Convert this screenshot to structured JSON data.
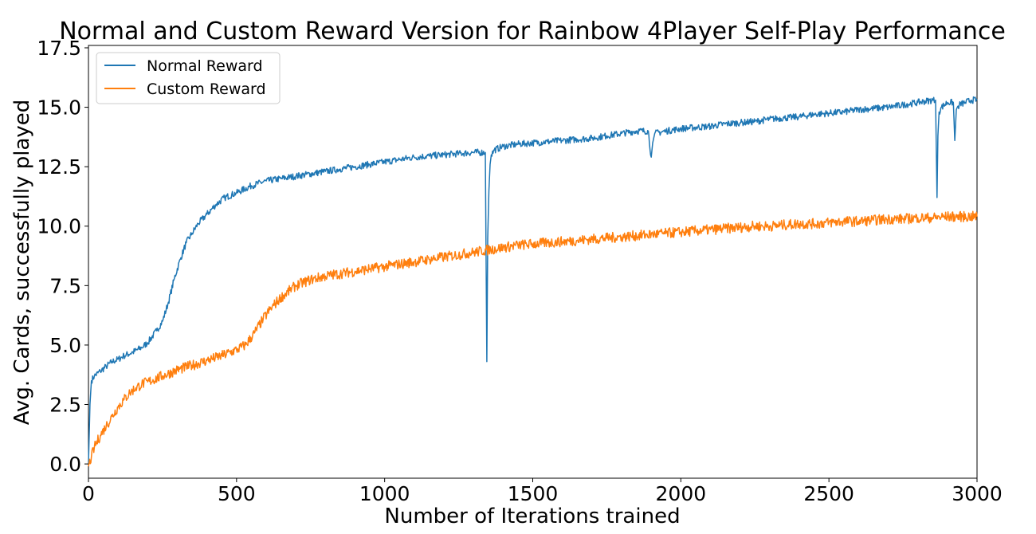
{
  "chart_data": {
    "type": "line",
    "title": "Normal and Custom Reward Version for Rainbow 4Player Self-Play Performance",
    "xlabel": "Number of Iterations trained",
    "ylabel": "Avg. Cards, successfully played",
    "xlim": [
      0,
      3000
    ],
    "ylim": [
      -0.6,
      17.6
    ],
    "xticks": [
      0,
      500,
      1000,
      1500,
      2000,
      2500,
      3000
    ],
    "yticks": [
      0.0,
      2.5,
      5.0,
      7.5,
      10.0,
      12.5,
      15.0,
      17.5
    ],
    "ytick_labels": [
      "0.0",
      "2.5",
      "5.0",
      "7.5",
      "10.0",
      "12.5",
      "15.0",
      "17.5"
    ],
    "xtick_labels": [
      "0",
      "500",
      "1000",
      "1500",
      "2000",
      "2500",
      "3000"
    ],
    "grid": false,
    "legend_position": "top-left",
    "series": [
      {
        "name": "Normal Reward",
        "color": "#1f77b4",
        "x": [
          0,
          5,
          10,
          20,
          40,
          60,
          80,
          100,
          120,
          150,
          180,
          200,
          230,
          250,
          270,
          290,
          310,
          330,
          350,
          370,
          400,
          430,
          460,
          500,
          550,
          600,
          650,
          700,
          750,
          800,
          850,
          900,
          950,
          1000,
          1050,
          1100,
          1150,
          1200,
          1250,
          1300,
          1340,
          1345,
          1348,
          1352,
          1356,
          1360,
          1370,
          1400,
          1450,
          1500,
          1550,
          1600,
          1650,
          1700,
          1750,
          1800,
          1850,
          1890,
          1900,
          1905,
          1912,
          1950,
          2000,
          2050,
          2100,
          2150,
          2200,
          2250,
          2300,
          2350,
          2400,
          2450,
          2500,
          2550,
          2600,
          2650,
          2700,
          2750,
          2800,
          2850,
          2860,
          2865,
          2868,
          2872,
          2880,
          2900,
          2920,
          2925,
          2930,
          2940,
          2960,
          2980,
          3000
        ],
        "y": [
          0.0,
          2.5,
          3.5,
          3.7,
          3.9,
          4.1,
          4.3,
          4.4,
          4.55,
          4.7,
          4.9,
          5.1,
          5.6,
          6.0,
          6.8,
          7.8,
          8.6,
          9.3,
          9.7,
          10.1,
          10.5,
          10.9,
          11.2,
          11.4,
          11.7,
          11.9,
          12.0,
          12.1,
          12.2,
          12.3,
          12.4,
          12.5,
          12.6,
          12.7,
          12.8,
          12.9,
          12.95,
          13.0,
          13.05,
          13.1,
          13.1,
          4.3,
          9.5,
          11.5,
          12.6,
          13.0,
          13.2,
          13.35,
          13.45,
          13.5,
          13.55,
          13.6,
          13.65,
          13.7,
          13.8,
          13.9,
          14.0,
          14.0,
          12.9,
          13.5,
          13.9,
          14.0,
          14.1,
          14.15,
          14.2,
          14.3,
          14.35,
          14.4,
          14.5,
          14.55,
          14.6,
          14.7,
          14.75,
          14.8,
          14.9,
          14.95,
          15.0,
          15.1,
          15.2,
          15.3,
          15.3,
          11.2,
          13.8,
          14.8,
          15.0,
          15.2,
          15.2,
          13.6,
          14.9,
          15.1,
          15.2,
          15.3,
          15.3
        ]
      },
      {
        "name": "Custom Reward",
        "color": "#ff7f0e",
        "x": [
          0,
          10,
          20,
          40,
          60,
          80,
          100,
          120,
          140,
          160,
          180,
          200,
          250,
          300,
          350,
          400,
          450,
          500,
          530,
          560,
          590,
          620,
          650,
          680,
          700,
          750,
          800,
          850,
          900,
          950,
          1000,
          1050,
          1100,
          1150,
          1200,
          1250,
          1300,
          1350,
          1400,
          1450,
          1500,
          1550,
          1600,
          1650,
          1700,
          1750,
          1800,
          1850,
          1900,
          1950,
          2000,
          2050,
          2100,
          2150,
          2200,
          2250,
          2300,
          2350,
          2400,
          2450,
          2500,
          2550,
          2600,
          2650,
          2700,
          2750,
          2800,
          2850,
          2900,
          2950,
          3000
        ],
        "y": [
          -0.1,
          0.3,
          0.7,
          1.2,
          1.6,
          2.0,
          2.4,
          2.7,
          3.0,
          3.2,
          3.35,
          3.45,
          3.7,
          3.95,
          4.15,
          4.35,
          4.55,
          4.8,
          5.0,
          5.5,
          6.1,
          6.6,
          7.0,
          7.3,
          7.5,
          7.75,
          7.9,
          8.0,
          8.1,
          8.2,
          8.3,
          8.4,
          8.5,
          8.6,
          8.7,
          8.8,
          8.9,
          9.0,
          9.1,
          9.2,
          9.25,
          9.3,
          9.35,
          9.4,
          9.45,
          9.5,
          9.55,
          9.6,
          9.65,
          9.7,
          9.75,
          9.8,
          9.85,
          9.9,
          9.95,
          10.0,
          10.0,
          10.05,
          10.1,
          10.1,
          10.15,
          10.2,
          10.2,
          10.25,
          10.3,
          10.3,
          10.35,
          10.35,
          10.4,
          10.4,
          10.4
        ]
      }
    ]
  }
}
